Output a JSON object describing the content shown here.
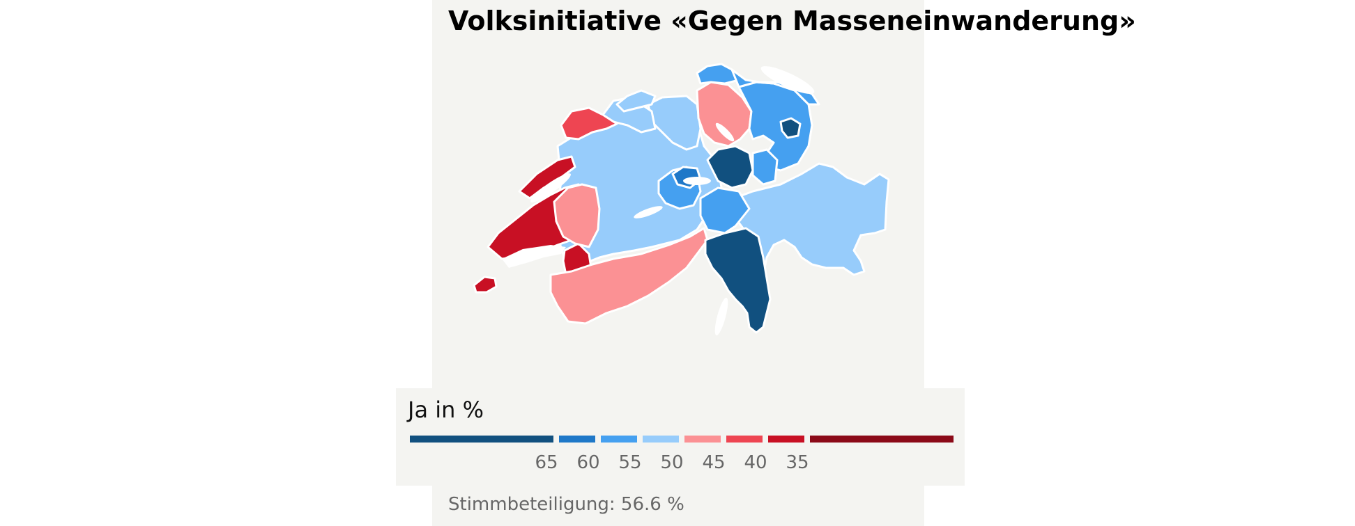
{
  "title": "Volksinitiative «Gegen Masseneinwanderung»",
  "legend": {
    "title": "Ja in %",
    "ticks": [
      "65",
      "60",
      "55",
      "50",
      "45",
      "40",
      "35"
    ],
    "colors": [
      "#11507f",
      "#1f78c8",
      "#45a0f0",
      "#97ccfb",
      "#fb9194",
      "#ee4552",
      "#c81024",
      "#8b0a18"
    ]
  },
  "turnout": "Stimmbeteiligung: 56.6 %",
  "map": {
    "region": "Switzerland cantons",
    "border_color": "#ffffff",
    "lake_color": "#ffffff"
  }
}
